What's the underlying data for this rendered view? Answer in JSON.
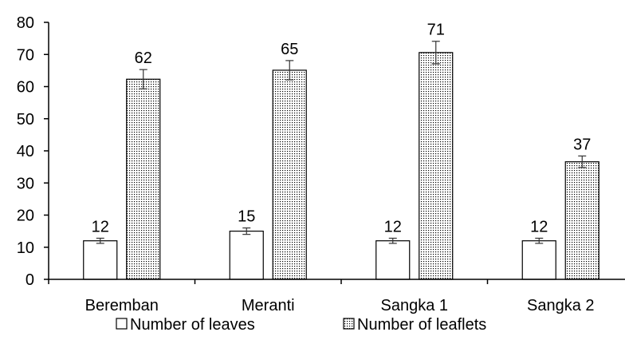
{
  "chart_data": {
    "type": "bar",
    "categories": [
      "Beremban",
      "Meranti",
      "Sangka 1",
      "Sangka 2"
    ],
    "series": [
      {
        "name": "Number of leaves",
        "values": [
          12,
          15,
          12,
          12
        ],
        "errors": [
          0.8,
          1.0,
          0.8,
          0.8
        ],
        "labels": [
          "12",
          "15",
          "12",
          "12"
        ],
        "fill": "white"
      },
      {
        "name": "Number of leaflets",
        "values": [
          62.3,
          65.1,
          70.6,
          36.6
        ],
        "errors": [
          3.0,
          3.0,
          3.5,
          1.8
        ],
        "labels": [
          "62",
          "65",
          "71",
          "37"
        ],
        "fill": "dotted"
      }
    ],
    "yticks": [
      "0",
      "10",
      "20",
      "30",
      "40",
      "50",
      "60",
      "70",
      "80"
    ],
    "ylim": [
      0,
      80
    ],
    "grid": false,
    "legend_position": "bottom",
    "colors": {
      "axis": "#000000",
      "bar_stroke": "#000000",
      "fill_white": "#ffffff",
      "dot": "#000000"
    }
  }
}
